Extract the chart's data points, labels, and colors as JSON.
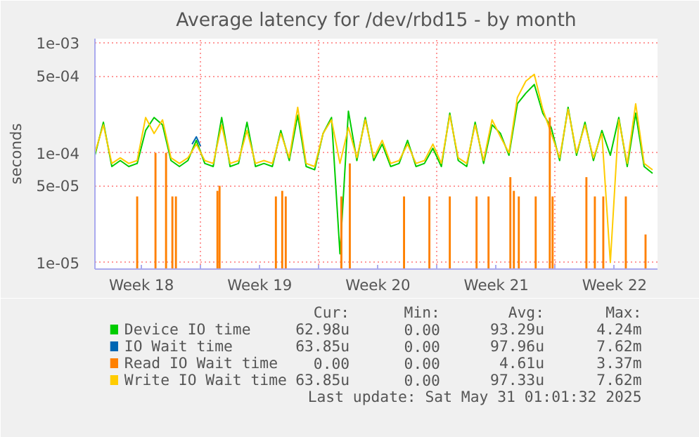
{
  "chart_data": {
    "type": "line",
    "title": "Average latency for /dev/rbd15 - by month",
    "ylabel": "seconds",
    "log": true,
    "grid": true,
    "legend": "bottom",
    "ylim": [
      8.7e-06,
      0.0011
    ],
    "yticks": [
      {
        "value": 1e-05,
        "label": "1e-05"
      },
      {
        "value": 5e-05,
        "label": "5e-05"
      },
      {
        "value": 0.0001,
        "label": "1e-04"
      },
      {
        "value": 0.0005,
        "label": "5e-04"
      },
      {
        "value": 0.001,
        "label": "1e-03"
      }
    ],
    "xlim": [
      "2025-04-27T18:00",
      "2025-05-31T01:00"
    ],
    "xticks": [
      {
        "value": "2025-04-30T12:00",
        "label": "Week 18"
      },
      {
        "value": "2025-05-04",
        "label": null
      },
      {
        "value": "2025-05-07T12:00",
        "label": "Week 19"
      },
      {
        "value": "2025-05-11",
        "label": null
      },
      {
        "value": "2025-05-14T12:00",
        "label": "Week 20"
      },
      {
        "value": "2025-05-18",
        "label": null
      },
      {
        "value": "2025-05-21T12:00",
        "label": "Week 21"
      },
      {
        "value": "2025-05-25",
        "label": null
      },
      {
        "value": "2025-05-28T12:00",
        "label": "Week 22"
      }
    ],
    "x": [
      "2025-04-27T18:00",
      "2025-04-28T06:00",
      "2025-04-28T18:00",
      "2025-04-29T06:00",
      "2025-04-29T18:00",
      "2025-04-30T06:00",
      "2025-04-30T18:00",
      "2025-05-01T06:00",
      "2025-05-01T18:00",
      "2025-05-02T06:00",
      "2025-05-02T18:00",
      "2025-05-03T06:00",
      "2025-05-03T18:00",
      "2025-05-04T06:00",
      "2025-05-04T18:00",
      "2025-05-05T06:00",
      "2025-05-05T18:00",
      "2025-05-06T06:00",
      "2025-05-06T18:00",
      "2025-05-07T06:00",
      "2025-05-07T18:00",
      "2025-05-08T06:00",
      "2025-05-08T18:00",
      "2025-05-09T06:00",
      "2025-05-09T18:00",
      "2025-05-10T06:00",
      "2025-05-10T18:00",
      "2025-05-11T06:00",
      "2025-05-11T18:00",
      "2025-05-12T06:00",
      "2025-05-12T18:00",
      "2025-05-13T06:00",
      "2025-05-13T18:00",
      "2025-05-14T06:00",
      "2025-05-14T18:00",
      "2025-05-15T06:00",
      "2025-05-15T18:00",
      "2025-05-16T06:00",
      "2025-05-16T18:00",
      "2025-05-17T06:00",
      "2025-05-17T18:00",
      "2025-05-18T06:00",
      "2025-05-18T18:00",
      "2025-05-19T06:00",
      "2025-05-19T18:00",
      "2025-05-20T06:00",
      "2025-05-20T18:00",
      "2025-05-21T06:00",
      "2025-05-21T18:00",
      "2025-05-22T06:00",
      "2025-05-22T18:00",
      "2025-05-23T06:00",
      "2025-05-23T18:00",
      "2025-05-24T06:00",
      "2025-05-24T18:00",
      "2025-05-25T06:00",
      "2025-05-25T18:00",
      "2025-05-26T06:00",
      "2025-05-26T18:00",
      "2025-05-27T06:00",
      "2025-05-27T18:00",
      "2025-05-28T06:00",
      "2025-05-28T18:00",
      "2025-05-29T06:00",
      "2025-05-29T18:00",
      "2025-05-30T06:00",
      "2025-05-30T18:00"
    ],
    "series": [
      {
        "name": "Device IO time",
        "color": "#00cc00",
        "values": [
          9.5e-05,
          0.00019,
          7.5e-05,
          8.5e-05,
          7.5e-05,
          8e-05,
          0.00016,
          0.00021,
          0.00018,
          8.5e-05,
          7.5e-05,
          8.5e-05,
          0.00013,
          8e-05,
          7.5e-05,
          0.00021,
          7.5e-05,
          8e-05,
          0.00019,
          7.5e-05,
          8e-05,
          7.5e-05,
          0.00016,
          8.5e-05,
          0.00022,
          7.5e-05,
          7e-05,
          0.00015,
          0.00021,
          1.2e-05,
          0.00024,
          8.5e-05,
          0.00021,
          8.5e-05,
          0.00012,
          7.5e-05,
          8e-05,
          0.00013,
          7.5e-05,
          8e-05,
          0.00011,
          7.5e-05,
          0.00023,
          8.5e-05,
          7.5e-05,
          0.00019,
          8e-05,
          0.00018,
          0.00015,
          9.5e-05,
          0.00028,
          0.00035,
          0.00042,
          0.00023,
          0.00017,
          8.5e-05,
          0.00026,
          9.5e-05,
          0.00019,
          8.5e-05,
          0.00016,
          9.5e-05,
          0.00021,
          7.5e-05,
          0.00023,
          7.5e-05,
          6.5e-05
        ]
      },
      {
        "name": "IO Wait time",
        "color": "#0066b3",
        "x": [
          "2025-05-03T12:00",
          "2025-05-03T18:00",
          "2025-05-04T00:00"
        ],
        "values": [
          0.00012,
          0.00014,
          0.000115
        ]
      },
      {
        "name": "Read IO Wait time",
        "color": "#ff8000",
        "type": "bar",
        "x": [
          "2025-04-30T06:00",
          "2025-05-01T08:00",
          "2025-05-01T23:00",
          "2025-05-02T08:00",
          "2025-05-02T13:00",
          "2025-05-05T00:00",
          "2025-05-05T03:00",
          "2025-05-08T11:00",
          "2025-05-08T20:00",
          "2025-05-09T01:00",
          "2025-05-12T08:00",
          "2025-05-12T20:00",
          "2025-05-16T01:00",
          "2025-05-17T13:00",
          "2025-05-18T18:00",
          "2025-05-20T08:00",
          "2025-05-21T01:00",
          "2025-05-22T08:00",
          "2025-05-22T13:00",
          "2025-05-22T20:00",
          "2025-05-23T20:00",
          "2025-05-24T16:00",
          "2025-05-24T20:00",
          "2025-05-26T20:00",
          "2025-05-27T08:00",
          "2025-05-27T20:00",
          "2025-05-29T04:00",
          "2025-05-30T08:00"
        ],
        "values": [
          4e-05,
          0.0001,
          0.0001,
          4e-05,
          4e-05,
          4.5e-05,
          5e-05,
          4e-05,
          4.5e-05,
          4e-05,
          4e-05,
          8e-05,
          4e-05,
          4e-05,
          4e-05,
          4e-05,
          4e-05,
          6e-05,
          4.5e-05,
          4e-05,
          4e-05,
          0.00021,
          4e-05,
          6e-05,
          4e-05,
          4e-05,
          4e-05,
          1.8e-05
        ]
      },
      {
        "name": "Write IO Wait time",
        "color": "#ffcc00",
        "values": [
          0.0001,
          0.00018,
          8e-05,
          9e-05,
          8e-05,
          8.5e-05,
          0.00021,
          0.00015,
          0.0002,
          9e-05,
          8e-05,
          9e-05,
          0.00012,
          8.5e-05,
          8e-05,
          0.00018,
          8e-05,
          8.5e-05,
          0.00016,
          8e-05,
          8.5e-05,
          8e-05,
          0.00015,
          9e-05,
          0.00026,
          8e-05,
          7.5e-05,
          0.00015,
          0.0002,
          8e-05,
          0.00017,
          9e-05,
          0.0002,
          9e-05,
          0.00013,
          8e-05,
          8.5e-05,
          0.00012,
          8e-05,
          8.5e-05,
          0.00012,
          8e-05,
          0.00022,
          9e-05,
          8e-05,
          0.00018,
          8.5e-05,
          0.0002,
          0.00014,
          0.0001,
          0.00032,
          0.00045,
          0.00052,
          0.00025,
          0.00015,
          9e-05,
          0.00025,
          0.0001,
          0.00018,
          9e-05,
          0.00015,
          1e-05,
          0.0002,
          8e-05,
          0.00028,
          8e-05,
          7e-05
        ]
      }
    ],
    "annotations": [
      "Cur:",
      "Min:",
      "Avg:",
      "Max:",
      "62.98u",
      "0.00",
      "93.29u",
      "4.24m",
      "63.85u",
      "0.00",
      "97.96u",
      "7.62m",
      "0.00",
      "0.00",
      "4.61u",
      "3.37m",
      "63.85u",
      "0.00",
      "97.33u",
      "7.62m",
      "Last update: Sat May 31 01:01:32 2025"
    ]
  }
}
